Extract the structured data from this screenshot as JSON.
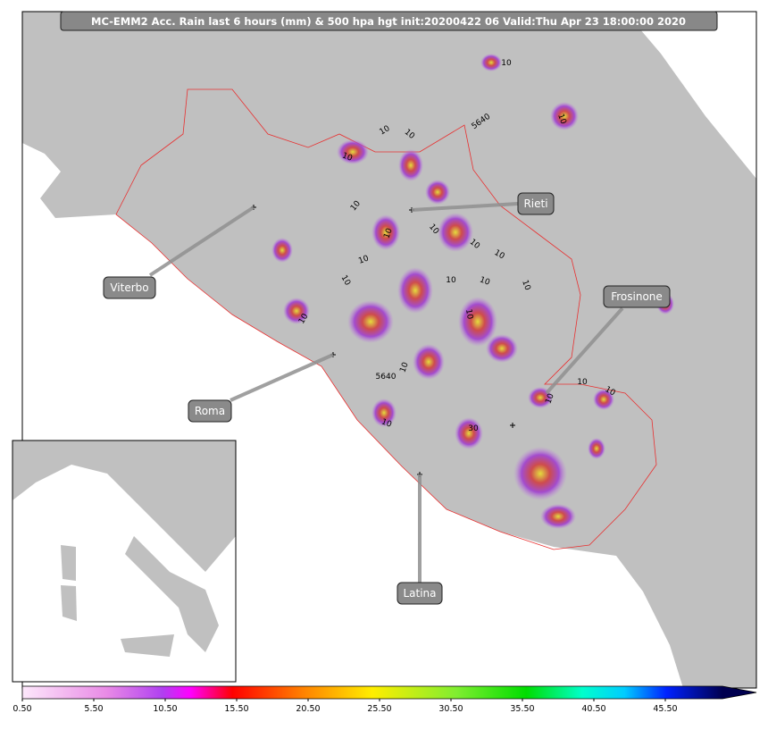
{
  "title": "MC-EMM2 Acc. Rain last 6 hours (mm) & 500 hpa hgt init:20200422 06  Valid:Thu Apr 23 18:00:00 2020",
  "cities": [
    {
      "label": "Viterbo"
    },
    {
      "label": "Rieti"
    },
    {
      "label": "Roma"
    },
    {
      "label": "Frosinone"
    },
    {
      "label": "Latina"
    }
  ],
  "contour_labels": [
    "10",
    "10",
    "10",
    "10",
    "10",
    "10",
    "10",
    "10",
    "10",
    "10",
    "10",
    "10",
    "10",
    "10",
    "10",
    "10",
    "10",
    "10",
    "10",
    "10",
    "10",
    "10",
    "30",
    "5640",
    "5640"
  ],
  "colorbar": {
    "range": [
      0.5,
      49.5
    ],
    "ticks": [
      {
        "value": 0.5,
        "label": "0.50"
      },
      {
        "value": 5.5,
        "label": "5.50"
      },
      {
        "value": 10.5,
        "label": "10.50"
      },
      {
        "value": 15.5,
        "label": "15.50"
      },
      {
        "value": 20.5,
        "label": "20.50"
      },
      {
        "value": 25.5,
        "label": "25.50"
      },
      {
        "value": 30.5,
        "label": "30.50"
      },
      {
        "value": 35.5,
        "label": "35.50"
      },
      {
        "value": 40.5,
        "label": "40.50"
      },
      {
        "value": 45.5,
        "label": "45.50"
      }
    ]
  }
}
